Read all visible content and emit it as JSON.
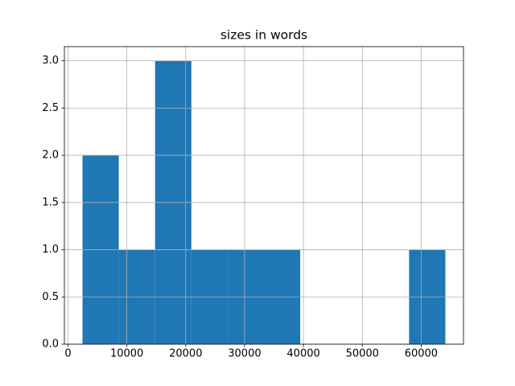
{
  "chart_data": {
    "type": "histogram",
    "title": "sizes in words",
    "bins": [
      2466,
      8630,
      14795,
      20959,
      27124,
      33288,
      39452,
      45617,
      51781,
      57946,
      64110
    ],
    "values": [
      2,
      1,
      3,
      1,
      1,
      1,
      0,
      0,
      0,
      1
    ],
    "color": "#1f77b4",
    "xlim": [
      -616,
      67192
    ],
    "xticks": [
      0,
      10000,
      20000,
      30000,
      40000,
      50000,
      60000
    ],
    "ylim": [
      0,
      3.15
    ],
    "yticks": [
      {
        "value": 0,
        "label": "0.0"
      },
      0.5,
      {
        "value": 1,
        "label": "1.0"
      },
      1.5,
      {
        "value": 2,
        "label": "2.0"
      },
      2.5,
      {
        "value": 3,
        "label": "3.0"
      }
    ],
    "grid": true
  }
}
